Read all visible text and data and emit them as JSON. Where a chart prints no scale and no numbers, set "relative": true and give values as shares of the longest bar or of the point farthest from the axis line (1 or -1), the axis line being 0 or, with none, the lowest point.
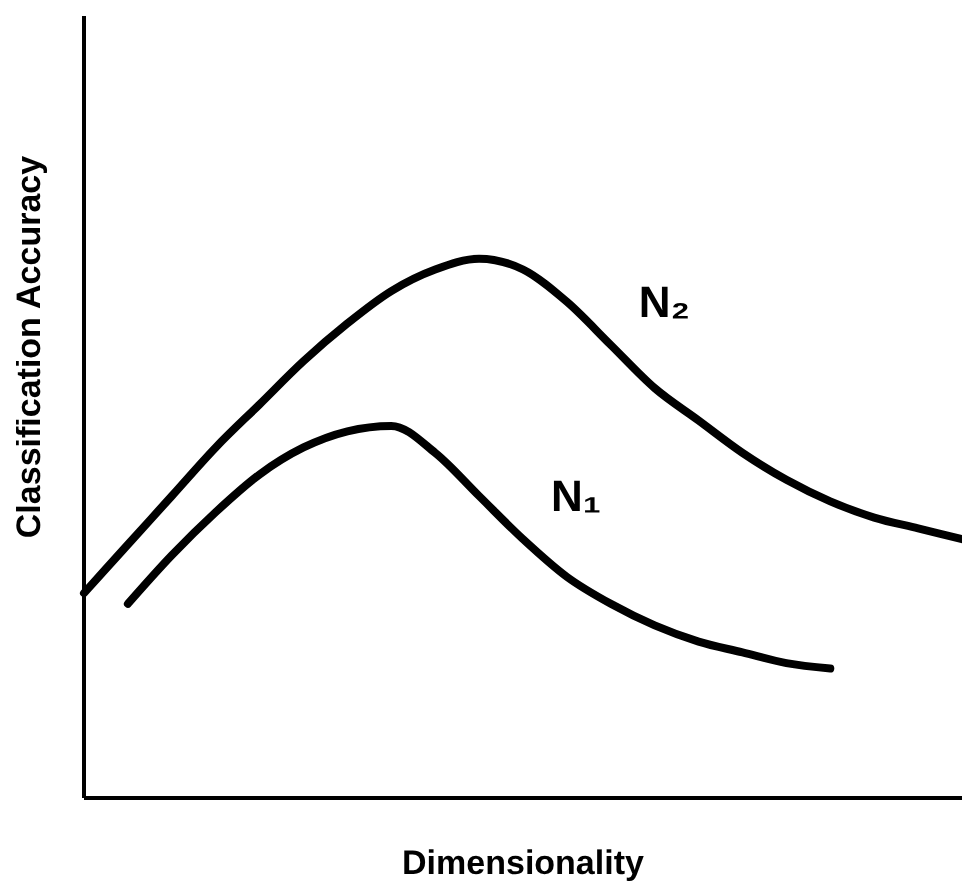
{
  "chart_data": {
    "type": "line",
    "relative": true,
    "xlabel": "Dimensionality",
    "ylabel": "Classification  Accuracy",
    "marker": "none",
    "line_style": "solid",
    "grid": false,
    "legend": false,
    "categories": [
      null,
      null,
      null,
      null,
      null,
      null,
      null,
      null,
      null,
      null,
      null,
      null,
      null,
      null,
      null,
      null,
      null,
      null,
      null,
      null,
      null
    ],
    "series": [
      {
        "name": "N₂",
        "color": "#000000",
        "values": [
          0.38,
          0.47,
          0.56,
          0.65,
          0.73,
          0.81,
          0.88,
          0.94,
          0.98,
          1.0,
          0.98,
          0.92,
          0.84,
          0.76,
          0.7,
          0.64,
          0.59,
          0.55,
          0.52,
          0.5,
          0.48
        ]
      },
      {
        "name": "N₁",
        "color": "#000000",
        "values": [
          null,
          0.36,
          0.45,
          0.53,
          0.6,
          0.65,
          0.68,
          0.69,
          0.64,
          0.56,
          0.48,
          0.41,
          0.36,
          0.32,
          0.29,
          0.27,
          0.25,
          0.24,
          null,
          null,
          null
        ]
      }
    ]
  }
}
